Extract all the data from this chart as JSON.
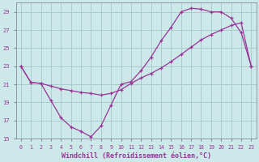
{
  "xlabel": "Windchill (Refroidissement éolien,°C)",
  "bg_color": "#cce8e8",
  "line_color": "#993399",
  "grid_color": "#aacccc",
  "xlim": [
    -0.5,
    23.5
  ],
  "ylim": [
    15,
    30
  ],
  "yticks": [
    15,
    17,
    19,
    21,
    23,
    25,
    27,
    29
  ],
  "xticks": [
    0,
    1,
    2,
    3,
    4,
    5,
    6,
    7,
    8,
    9,
    10,
    11,
    12,
    13,
    14,
    15,
    16,
    17,
    18,
    19,
    20,
    21,
    22,
    23
  ],
  "curve1_x": [
    0,
    1,
    2,
    3,
    4,
    5,
    6,
    7,
    8,
    9,
    10,
    11,
    12,
    13,
    14,
    15,
    16,
    17,
    18,
    19,
    20,
    21,
    22,
    23
  ],
  "curve1_y": [
    23.0,
    21.2,
    21.1,
    19.2,
    17.3,
    16.3,
    15.8,
    15.2,
    16.4,
    18.7,
    21.0,
    21.3,
    22.5,
    24.0,
    25.8,
    27.3,
    29.0,
    29.4,
    29.3,
    29.0,
    29.0,
    28.3,
    26.7,
    23.0
  ],
  "curve2_x": [
    0,
    1,
    2,
    3,
    4,
    5,
    6,
    7,
    8,
    9,
    10,
    11,
    12,
    13,
    14,
    15,
    16,
    17,
    18,
    19,
    20,
    21,
    22,
    23
  ],
  "curve2_y": [
    23.0,
    21.2,
    21.1,
    20.8,
    20.5,
    20.3,
    20.1,
    20.0,
    19.8,
    20.0,
    20.4,
    21.1,
    21.7,
    22.2,
    22.8,
    23.5,
    24.3,
    25.1,
    25.9,
    26.5,
    27.0,
    27.5,
    27.8,
    23.0
  ]
}
